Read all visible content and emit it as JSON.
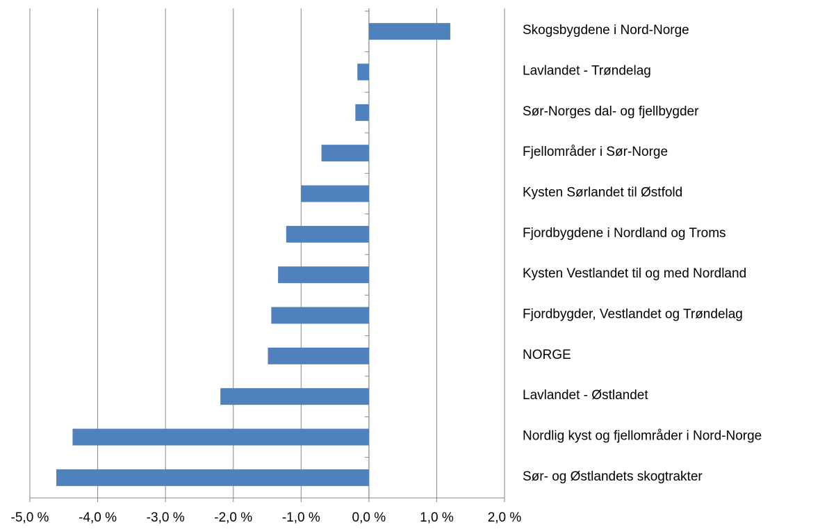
{
  "chart_data": {
    "type": "bar",
    "orientation": "horizontal",
    "categories": [
      "Skogsbygdene i Nord-Norge",
      "Lavlandet - Trøndelag",
      "Sør-Norges dal- og fjellbygder",
      "Fjellområder i Sør-Norge",
      "Kysten Sørlandet til Østfold",
      "Fjordbygdene i Nordland og Troms",
      "Kysten Vestlandet til og med Nordland",
      "Fjordbygder, Vestlandet og Trøndelag",
      "NORGE",
      "Lavlandet - Østlandet",
      "Nordlig kyst og fjellområder i Nord-Norge",
      "Sør- og Østlandets skogtrakter"
    ],
    "values": [
      1.2,
      -0.17,
      -0.2,
      -0.7,
      -1.0,
      -1.22,
      -1.34,
      -1.44,
      -1.49,
      -2.19,
      -4.37,
      -4.61
    ],
    "color": "#4f81bd",
    "xlim": [
      -5,
      2
    ],
    "xticks": [
      {
        "value": -5,
        "label": "-5,0 %"
      },
      {
        "value": -4,
        "label": "-4,0 %"
      },
      {
        "value": -3,
        "label": "-3,0 %"
      },
      {
        "value": -2,
        "label": "-2,0 %"
      },
      {
        "value": -1,
        "label": "-1,0 %"
      },
      {
        "value": 0,
        "label": "0,0 %"
      },
      {
        "value": 1,
        "label": "1,0 %"
      },
      {
        "value": 2,
        "label": "2,0 %"
      }
    ],
    "grid": true
  }
}
